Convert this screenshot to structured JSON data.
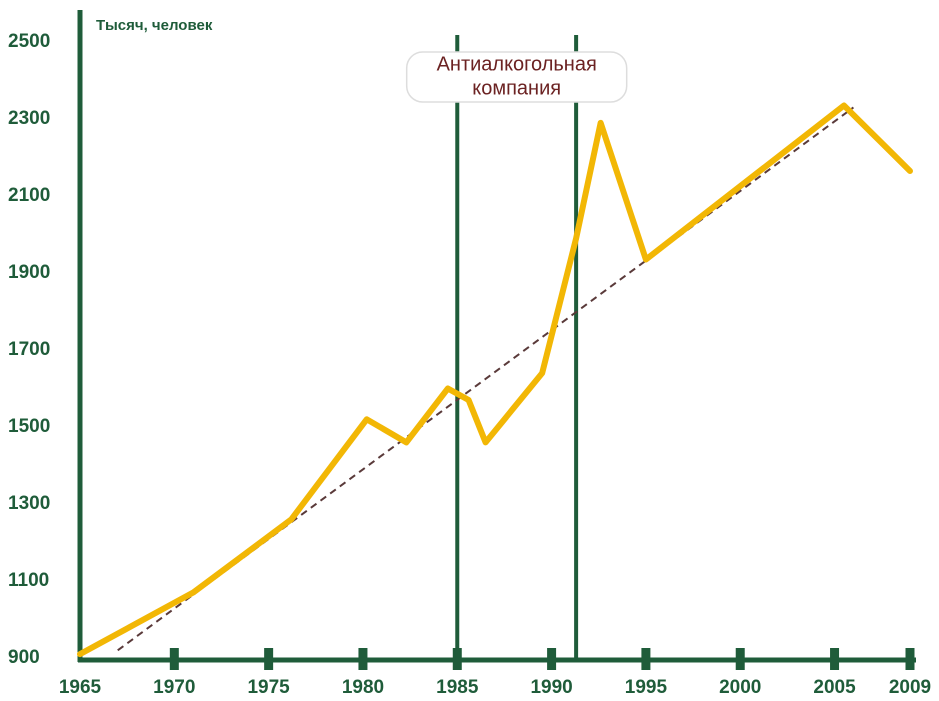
{
  "chart_data": {
    "type": "line",
    "y_label": "Тысяч, человек",
    "x": [
      1965,
      1971,
      1976.2,
      1980.2,
      1982.3,
      1984.5,
      1985.6,
      1986.5,
      1989.5,
      1991.3,
      1992.6,
      1995,
      2005.5,
      2009
    ],
    "series": [
      {
        "color": "#f2b705",
        "values": [
          910,
          1070,
          1260,
          1520,
          1460,
          1600,
          1570,
          1460,
          1640,
          1990,
          2290,
          1935,
          2335,
          2165
        ]
      }
    ],
    "trend": {
      "color": "#5a3a3a",
      "x": [
        1967,
        2006
      ],
      "values": [
        920,
        2330
      ]
    },
    "annotation": {
      "text": [
        "Антиалкогольная",
        "компания"
      ],
      "x_range": [
        1985,
        1991.3
      ]
    },
    "xlim": [
      1965,
      2009
    ],
    "xticks": [
      1965,
      1970,
      1975,
      1980,
      1985,
      1990,
      1995,
      2000,
      2005,
      2009
    ],
    "ylim": [
      900,
      2500
    ],
    "yticks": [
      900,
      1100,
      1300,
      1500,
      1700,
      1900,
      2100,
      2300,
      2500
    ],
    "axis_color": "#1f5c3a"
  }
}
